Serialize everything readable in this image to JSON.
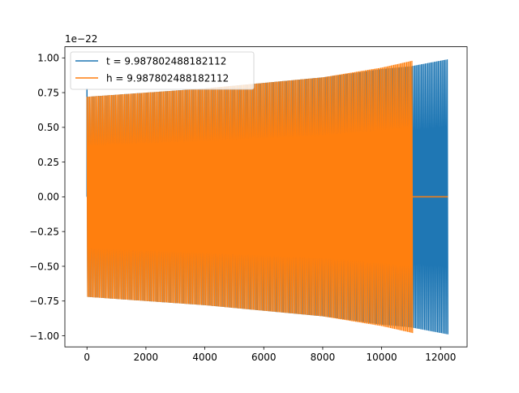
{
  "chart_data": {
    "type": "line",
    "title": "",
    "xlabel": "",
    "ylabel": "",
    "y_offset_label": "1e−22",
    "xlim": [
      -750,
      12900
    ],
    "ylim": [
      -1.08,
      1.08
    ],
    "x_ticks": [
      0,
      2000,
      4000,
      6000,
      8000,
      10000,
      12000
    ],
    "x_tick_labels": [
      "0",
      "2000",
      "4000",
      "6000",
      "8000",
      "10000",
      "12000"
    ],
    "y_ticks": [
      -1.0,
      -0.75,
      -0.5,
      -0.25,
      0.0,
      0.25,
      0.5,
      0.75,
      1.0
    ],
    "y_tick_labels": [
      "−1.00",
      "−0.75",
      "−0.50",
      "−0.25",
      "0.00",
      "0.25",
      "0.50",
      "0.75",
      "1.00"
    ],
    "grid": false,
    "legend_position": "top-left",
    "series": [
      {
        "name": "t = 9.987802488182112",
        "color": "#1f77b4",
        "envelope": {
          "x": [
            0,
            2000,
            4000,
            6000,
            8000,
            10000,
            11000,
            12250
          ],
          "upper": [
            0.72,
            0.75,
            0.78,
            0.82,
            0.86,
            0.92,
            0.94,
            0.99
          ],
          "lower": [
            -0.72,
            -0.75,
            -0.78,
            -0.82,
            -0.86,
            -0.92,
            -0.94,
            -0.99
          ]
        },
        "x_end": 12250,
        "start_spike": 0.78
      },
      {
        "name": "h = 9.987802488182112",
        "color": "#ff7f0e",
        "envelope": {
          "x": [
            0,
            2000,
            4000,
            6000,
            8000,
            10000,
            11050
          ],
          "upper": [
            0.72,
            0.75,
            0.78,
            0.82,
            0.86,
            0.93,
            0.98
          ],
          "lower": [
            -0.72,
            -0.75,
            -0.78,
            -0.82,
            -0.86,
            -0.93,
            -0.98
          ]
        },
        "x_end": 11050,
        "tail": {
          "x": [
            11050,
            12250
          ],
          "y": [
            0.0,
            0.0
          ]
        }
      }
    ]
  }
}
